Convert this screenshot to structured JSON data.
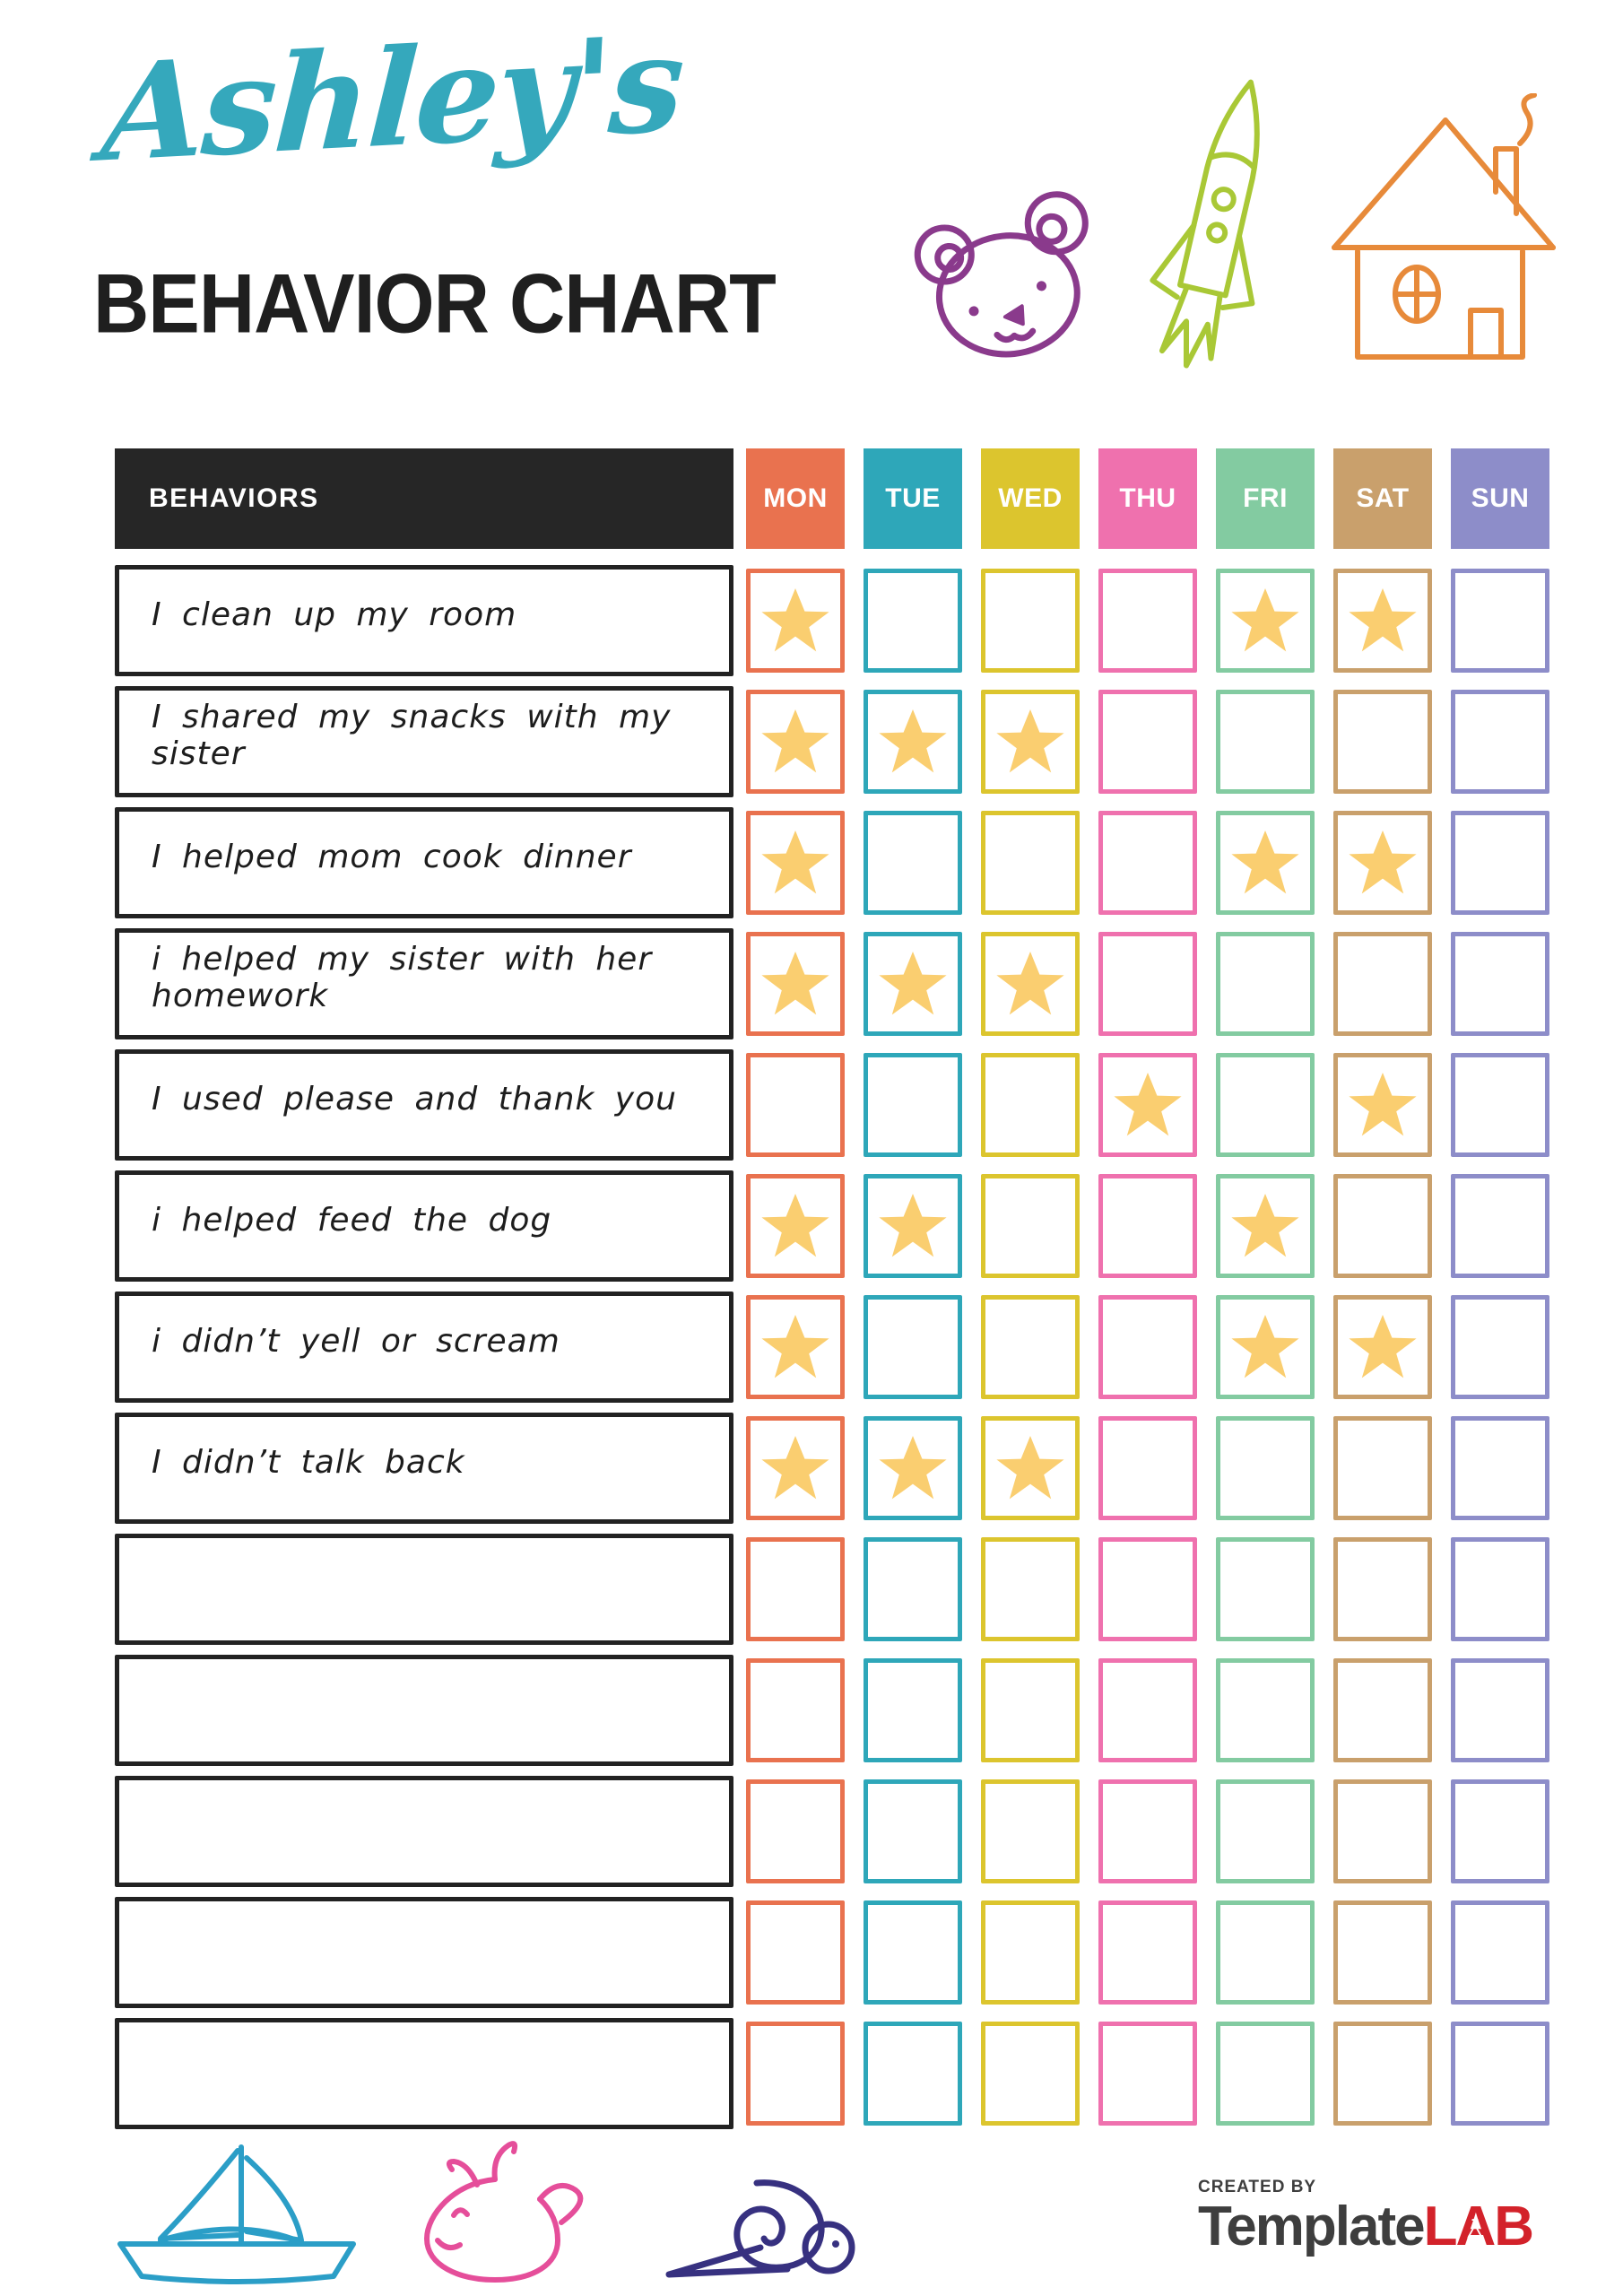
{
  "title": {
    "script_name": "Ashley's",
    "heading": "BEHAVIOR CHART",
    "script_color": "#35A8BC",
    "heading_color": "#1f1f1f"
  },
  "top_doodles": [
    {
      "name": "bear",
      "color": "#8A3A8C"
    },
    {
      "name": "rocket",
      "color": "#A9C836"
    },
    {
      "name": "house",
      "color": "#E78A3A"
    }
  ],
  "table": {
    "behaviors_header": "BEHAVIORS",
    "header_bg": "#262626",
    "star_color": "#FACE70",
    "days": [
      {
        "label": "MON",
        "color": "#E9724F"
      },
      {
        "label": "TUE",
        "color": "#2EA7B9"
      },
      {
        "label": "WED",
        "color": "#DCC52E"
      },
      {
        "label": "THU",
        "color": "#EF71AE"
      },
      {
        "label": "FRI",
        "color": "#83CBA1"
      },
      {
        "label": "SAT",
        "color": "#C9A06C"
      },
      {
        "label": "SUN",
        "color": "#8D8DC9"
      }
    ],
    "rows": [
      {
        "label": "I clean up my room",
        "stars": [
          1,
          0,
          0,
          0,
          1,
          1,
          0
        ]
      },
      {
        "label": "I shared my snacks with my sister",
        "stars": [
          1,
          1,
          1,
          0,
          0,
          0,
          0
        ]
      },
      {
        "label": "I helped mom cook dinner",
        "stars": [
          1,
          0,
          0,
          0,
          1,
          1,
          0
        ]
      },
      {
        "label": "i helped my sister with her homework",
        "stars": [
          1,
          1,
          1,
          0,
          0,
          0,
          0
        ]
      },
      {
        "label": "I used please and thank you",
        "stars": [
          0,
          0,
          0,
          1,
          0,
          1,
          0
        ]
      },
      {
        "label": "i helped feed the dog",
        "stars": [
          1,
          1,
          0,
          0,
          1,
          0,
          0
        ]
      },
      {
        "label": "i didn’t yell or scream",
        "stars": [
          1,
          0,
          0,
          0,
          1,
          1,
          0
        ]
      },
      {
        "label": "I didn’t talk back",
        "stars": [
          1,
          1,
          1,
          0,
          0,
          0,
          0
        ]
      },
      {
        "label": "",
        "stars": [
          0,
          0,
          0,
          0,
          0,
          0,
          0
        ]
      },
      {
        "label": "",
        "stars": [
          0,
          0,
          0,
          0,
          0,
          0,
          0
        ]
      },
      {
        "label": "",
        "stars": [
          0,
          0,
          0,
          0,
          0,
          0,
          0
        ]
      },
      {
        "label": "",
        "stars": [
          0,
          0,
          0,
          0,
          0,
          0,
          0
        ]
      },
      {
        "label": "",
        "stars": [
          0,
          0,
          0,
          0,
          0,
          0,
          0
        ]
      }
    ]
  },
  "bottom_doodles": [
    {
      "name": "sailboat",
      "color": "#2B9EC7"
    },
    {
      "name": "whale",
      "color": "#E54E9A"
    },
    {
      "name": "snail",
      "color": "#373180"
    }
  ],
  "footer_logo": {
    "created_by": "CREATED BY",
    "brand_dark": "Template",
    "brand_accent": "LAB",
    "accent_color": "#D3222A"
  }
}
